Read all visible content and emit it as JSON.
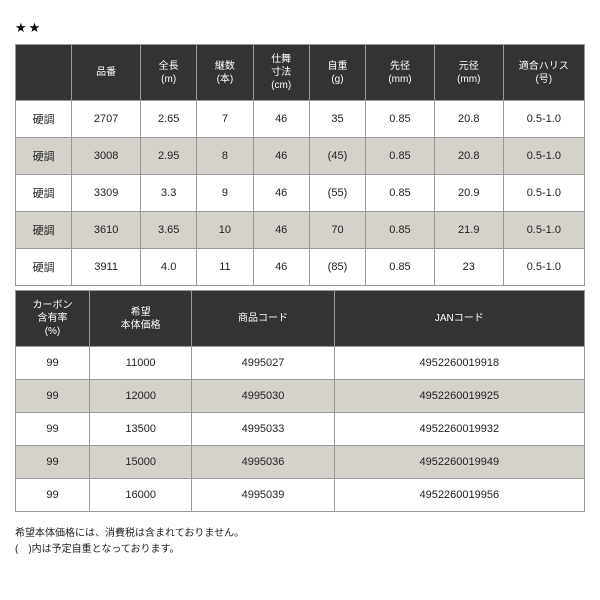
{
  "stars": "★★",
  "table1": {
    "headers": [
      "",
      "品番",
      "全長\n(m)",
      "継数\n(本)",
      "仕舞\n寸法\n(cm)",
      "自重\n(g)",
      "先径\n(mm)",
      "元径\n(mm)",
      "適合ハリス\n(号)"
    ],
    "rows": [
      {
        "alt": false,
        "cells": [
          "硬調",
          "2707",
          "2.65",
          "7",
          "46",
          "35",
          "0.85",
          "20.8",
          "0.5-1.0"
        ]
      },
      {
        "alt": true,
        "cells": [
          "硬調",
          "3008",
          "2.95",
          "8",
          "46",
          "(45)",
          "0.85",
          "20.8",
          "0.5-1.0"
        ]
      },
      {
        "alt": false,
        "cells": [
          "硬調",
          "3309",
          "3.3",
          "9",
          "46",
          "(55)",
          "0.85",
          "20.9",
          "0.5-1.0"
        ]
      },
      {
        "alt": true,
        "cells": [
          "硬調",
          "3610",
          "3.65",
          "10",
          "46",
          "70",
          "0.85",
          "21.9",
          "0.5-1.0"
        ]
      },
      {
        "alt": false,
        "cells": [
          "硬調",
          "3911",
          "4.0",
          "11",
          "46",
          "(85)",
          "0.85",
          "23",
          "0.5-1.0"
        ]
      }
    ]
  },
  "table2": {
    "headers": [
      "カーボン\n含有率\n(%)",
      "希望\n本体価格",
      "商品コード",
      "JANコード"
    ],
    "rows": [
      {
        "alt": false,
        "cells": [
          "99",
          "11000",
          "4995027",
          "4952260019918"
        ]
      },
      {
        "alt": true,
        "cells": [
          "99",
          "12000",
          "4995030",
          "4952260019925"
        ]
      },
      {
        "alt": false,
        "cells": [
          "99",
          "13500",
          "4995033",
          "4952260019932"
        ]
      },
      {
        "alt": true,
        "cells": [
          "99",
          "15000",
          "4995036",
          "4952260019949"
        ]
      },
      {
        "alt": false,
        "cells": [
          "99",
          "16000",
          "4995039",
          "4952260019956"
        ]
      }
    ]
  },
  "note1": "希望本体価格には、消費税は含まれておりません。",
  "note2": "(　)内は予定自重となっております。"
}
